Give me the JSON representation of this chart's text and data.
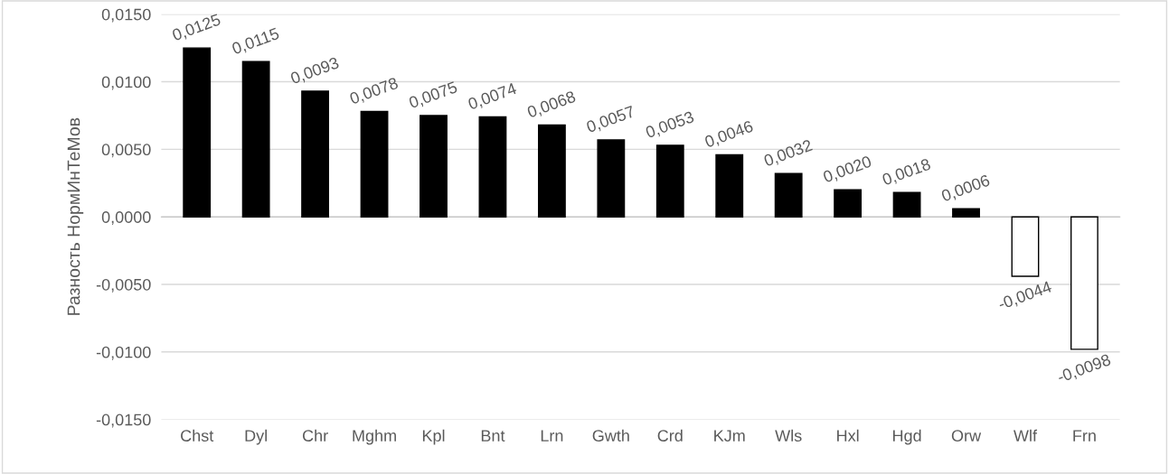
{
  "chart_data": {
    "type": "bar",
    "ylabel": "Разность НормИнТеМов",
    "categories": [
      "Chst",
      "Dyl",
      "Chr",
      "Mghm",
      "Kpl",
      "Bnt",
      "Lrn",
      "Gwth",
      "Crd",
      "KJm",
      "Wls",
      "Hxl",
      "Hgd",
      "Orw",
      "Wlf",
      "Frn"
    ],
    "values": [
      0.0125,
      0.0115,
      0.0093,
      0.0078,
      0.0075,
      0.0074,
      0.0068,
      0.0057,
      0.0053,
      0.0046,
      0.0032,
      0.002,
      0.0018,
      0.0006,
      -0.0044,
      -0.0098
    ],
    "value_labels": [
      "0,0125",
      "0,0115",
      "0,0093",
      "0,0078",
      "0,0075",
      "0,0074",
      "0,0068",
      "0,0057",
      "0,0053",
      "0,0046",
      "0,0032",
      "0,0020",
      "0,0018",
      "0,0006",
      "-0,0044",
      "-0,0098"
    ],
    "colors": [
      "#000000",
      "#000000",
      "#000000",
      "#000000",
      "#000000",
      "#000000",
      "#000000",
      "#000000",
      "#000000",
      "#000000",
      "#000000",
      "#000000",
      "#000000",
      "#000000",
      "#ffffff",
      "#ffffff"
    ],
    "ylim": [
      -0.015,
      0.015
    ],
    "yticks": [
      {
        "value": -0.015,
        "label": "-0,0150"
      },
      {
        "value": -0.01,
        "label": "-0,0100"
      },
      {
        "value": -0.005,
        "label": "-0,0050"
      },
      {
        "value": 0,
        "label": "0,0000"
      },
      {
        "value": 0.005,
        "label": "0,0050"
      },
      {
        "value": 0.01,
        "label": "0,0100"
      },
      {
        "value": 0.015,
        "label": "0,0150"
      }
    ],
    "grid": "y"
  }
}
